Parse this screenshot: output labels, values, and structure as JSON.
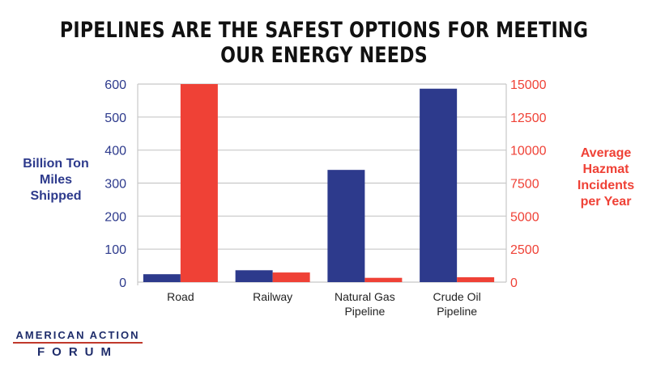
{
  "chart_data": {
    "type": "bar",
    "title": "PIPELINES ARE THE SAFEST OPTIONS FOR MEETING OUR ENERGY NEEDS",
    "categories": [
      "Road",
      "Railway",
      "Natural Gas Pipeline",
      "Crude Oil Pipeline"
    ],
    "category_lines": [
      [
        "Road"
      ],
      [
        "Railway"
      ],
      [
        "Natural Gas",
        "Pipeline"
      ],
      [
        "Crude Oil",
        "Pipeline"
      ]
    ],
    "series": [
      {
        "name": "Billion Ton Miles Shipped",
        "axis": "left",
        "color": "#2d3a8c",
        "values": [
          24,
          36,
          340,
          586
        ]
      },
      {
        "name": "Average Hazmat Incidents per Year",
        "axis": "right",
        "color": "#ef4136",
        "values": [
          15000,
          730,
          325,
          370
        ]
      }
    ],
    "ylabel": "Billion Ton Miles Shipped",
    "ylabel_lines": [
      "Billion Ton",
      "Miles",
      "Shipped"
    ],
    "y2label": "Average Hazmat Incidents per Year",
    "y2label_lines": [
      "Average",
      "Hazmat",
      "Incidents",
      "per Year"
    ],
    "ylim": [
      0,
      600
    ],
    "y2lim": [
      0,
      15000
    ],
    "yticks": [
      "0",
      "100",
      "200",
      "300",
      "400",
      "500",
      "600"
    ],
    "y2ticks": [
      "0",
      "2500",
      "5000",
      "7500",
      "10000",
      "12500",
      "15000"
    ],
    "grid": true,
    "legend": "none"
  },
  "logo": {
    "line1": "AMERICAN ACTION",
    "line2": "FORUM"
  }
}
